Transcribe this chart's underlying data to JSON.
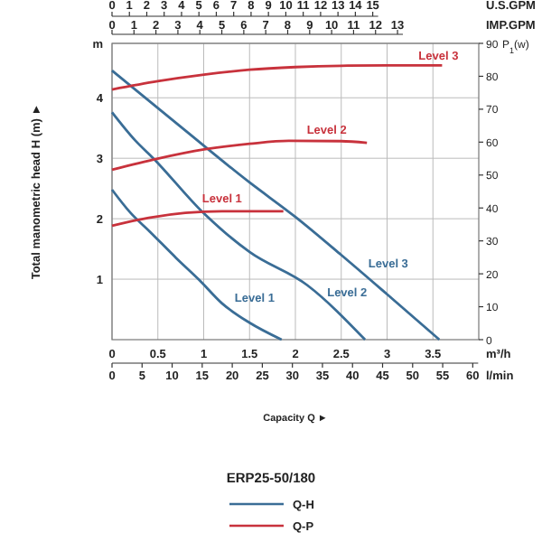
{
  "chart_data": [
    {
      "type": "line",
      "ylabel": "Total manometric head H (m) ►",
      "x2label": "U.S.GPM",
      "legend_title": "ERP25-50/180",
      "legend": "bottom",
      "grid": true,
      "xlim": [
        0,
        4
      ],
      "xticks": [
        0,
        0.5,
        1,
        1.5,
        2,
        2.5,
        3,
        3.5
      ],
      "ylim": [
        0,
        4.9
      ],
      "yticks": [
        1,
        2,
        3,
        4,
        {
          "value": 4.9,
          "label": "m"
        }
      ],
      "x2lim": [
        0,
        21.1
      ],
      "x2ticks": [
        0,
        1,
        2,
        3,
        4,
        5,
        6,
        7,
        8,
        9,
        10,
        11,
        12,
        13,
        14,
        15
      ],
      "series": [
        {
          "name": "Q-H",
          "color": "#3a6d96",
          "x": [
            0,
            0.75,
            1.5,
            2,
            2.5,
            3,
            3.57
          ],
          "values": [
            4.45,
            3.52,
            2.6,
            2.03,
            1.4,
            0.75,
            0
          ]
        },
        {
          "color": "#3a6d96",
          "x": [
            0,
            0.25,
            0.45,
            1,
            1.5,
            2.13,
            2.76
          ],
          "values": [
            3.76,
            3.3,
            3.0,
            2.09,
            1.45,
            0.9,
            0
          ]
        },
        {
          "color": "#3a6d96",
          "x": [
            0,
            0.2,
            0.41,
            0.7,
            0.95,
            1.2,
            1.5,
            1.85
          ],
          "values": [
            2.48,
            2.1,
            1.79,
            1.35,
            0.99,
            0.6,
            0.28,
            0
          ]
        }
      ],
      "annotations": [
        "m³/h",
        "Capacity Q ►",
        "Level 3",
        "Level 2",
        "Level 1"
      ]
    },
    {
      "type": "line",
      "xlabel": "l/min",
      "x2label": "IMP.GPM",
      "y2label": "P$_{1}$(w)",
      "xlim": [
        0,
        61
      ],
      "xticks": [
        0,
        5,
        10,
        15,
        20,
        25,
        30,
        35,
        40,
        45,
        50,
        55,
        60
      ],
      "x2lim": [
        0,
        16.7
      ],
      "x2ticks": [
        0,
        1,
        2,
        3,
        4,
        5,
        6,
        7,
        8,
        9,
        10,
        11,
        12,
        13
      ],
      "y2lim": [
        0,
        90
      ],
      "y2ticks": [
        0,
        10,
        20,
        30,
        40,
        50,
        60,
        70,
        80,
        90
      ],
      "series": [
        {
          "name": "Q-P",
          "axis": "y2",
          "color": "#c8323c",
          "x": [
            0,
            7.6,
            15.3,
            22.9,
            30.5,
            38.1,
            45.8,
            54.9
          ],
          "values": [
            76,
            78.5,
            80.5,
            82,
            82.8,
            83.2,
            83.3,
            83.3
          ]
        },
        {
          "axis": "y2",
          "color": "#c8323c",
          "x": [
            0,
            7.6,
            15.3,
            22.9,
            29.4,
            38.1,
            42.4
          ],
          "values": [
            51.6,
            55,
            57.8,
            59.5,
            60.4,
            60.3,
            59.8
          ]
        },
        {
          "axis": "y2",
          "color": "#c8323c",
          "x": [
            0,
            6.1,
            12.2,
            18.3,
            28.5
          ],
          "values": [
            34.6,
            37,
            38.5,
            39,
            39
          ]
        }
      ],
      "annotations": [
        "Level 3",
        "Level 2",
        "Level 1"
      ]
    }
  ]
}
